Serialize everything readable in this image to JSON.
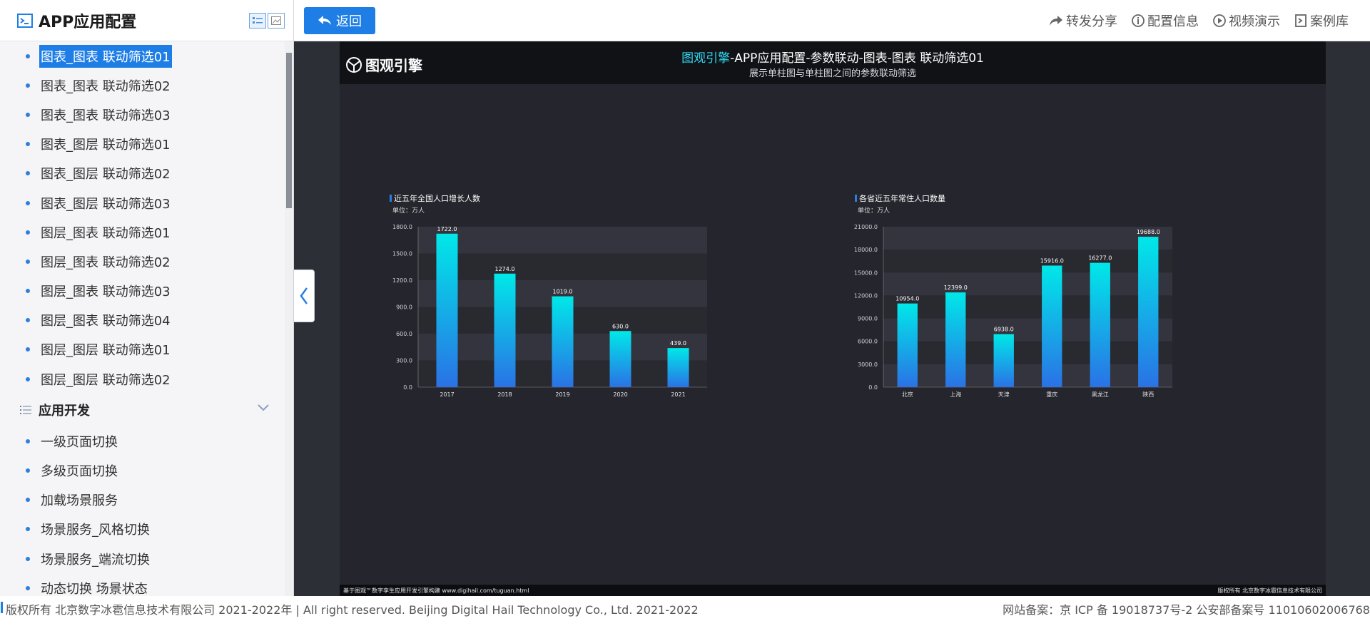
{
  "sidebar": {
    "title": "APP应用配置",
    "items_top": [
      {
        "label": "图表_图表 联动筛选01",
        "selected": true
      },
      {
        "label": "图表_图表 联动筛选02"
      },
      {
        "label": "图表_图表 联动筛选03"
      },
      {
        "label": "图表_图层 联动筛选01"
      },
      {
        "label": "图表_图层 联动筛选02"
      },
      {
        "label": "图表_图层 联动筛选03"
      },
      {
        "label": "图层_图表 联动筛选01"
      },
      {
        "label": "图层_图表 联动筛选02"
      },
      {
        "label": "图层_图表 联动筛选03"
      },
      {
        "label": "图层_图表 联动筛选04"
      },
      {
        "label": "图层_图层 联动筛选01"
      },
      {
        "label": "图层_图层 联动筛选02"
      }
    ],
    "group_label": "应用开发",
    "items_bottom": [
      {
        "label": "一级页面切换"
      },
      {
        "label": "多级页面切换"
      },
      {
        "label": "加载场景服务"
      },
      {
        "label": "场景服务_风格切换"
      },
      {
        "label": "场景服务_端流切换"
      },
      {
        "label": "动态切换 场景状态"
      }
    ]
  },
  "topbar": {
    "back_label": "返回",
    "actions": [
      {
        "label": "转发分享",
        "icon": "share-icon"
      },
      {
        "label": "配置信息",
        "icon": "info-icon"
      },
      {
        "label": "视频演示",
        "icon": "play-icon"
      },
      {
        "label": "案例库",
        "icon": "library-icon"
      }
    ]
  },
  "preview": {
    "logo_text": "图观引擎",
    "title_brand": "图观引擎",
    "title_rest": "-APP应用配置-参数联动-图表-图表 联动筛选01",
    "subtitle": "展示单柱图与单柱图之间的参数联动筛选",
    "footer_left": "基于图观™数字孪生应用开发引擎构建 www.digihail.com/tuguan.html",
    "footer_right": "版权所有 北京数字冰雹信息技术有限公司"
  },
  "chart_data": [
    {
      "type": "bar",
      "title": "近五年全国人口增长人数",
      "unit": "单位：万人",
      "categories": [
        "2017",
        "2018",
        "2019",
        "2020",
        "2021"
      ],
      "values": [
        1722.0,
        1274.0,
        1019.0,
        630.0,
        439.0
      ],
      "ylim": [
        0,
        1800
      ],
      "yticks": [
        "0.0",
        "300.0",
        "600.0",
        "900.0",
        "1200.0",
        "1500.0",
        "1800.0"
      ],
      "grid": "alternating bands",
      "colors": {
        "top": "#00e8e8",
        "bottom": "#2a72e6"
      }
    },
    {
      "type": "bar",
      "title": "各省近五年常住人口数量",
      "unit": "单位：万人",
      "categories": [
        "北京",
        "上海",
        "天津",
        "重庆",
        "黑龙江",
        "陕西"
      ],
      "values": [
        10954.0,
        12399.0,
        6938.0,
        15916.0,
        16277.0,
        19688.0
      ],
      "ylim": [
        0,
        21000
      ],
      "yticks": [
        "0.0",
        "3000.0",
        "6000.0",
        "9000.0",
        "12000.0",
        "15000.0",
        "18000.0",
        "21000.0"
      ],
      "grid": "alternating bands",
      "colors": {
        "top": "#00e8e8",
        "bottom": "#2a72e6"
      }
    }
  ],
  "bottombar": {
    "left": "版权所有 北京数字冰雹信息技术有限公司 2021-2022年 | All right reserved. Beijing Digital Hail Technology Co., Ltd. 2021-2022",
    "right": "网站备案：京 ICP 备 19018737号-2 公安部备案号 11010602006768"
  }
}
